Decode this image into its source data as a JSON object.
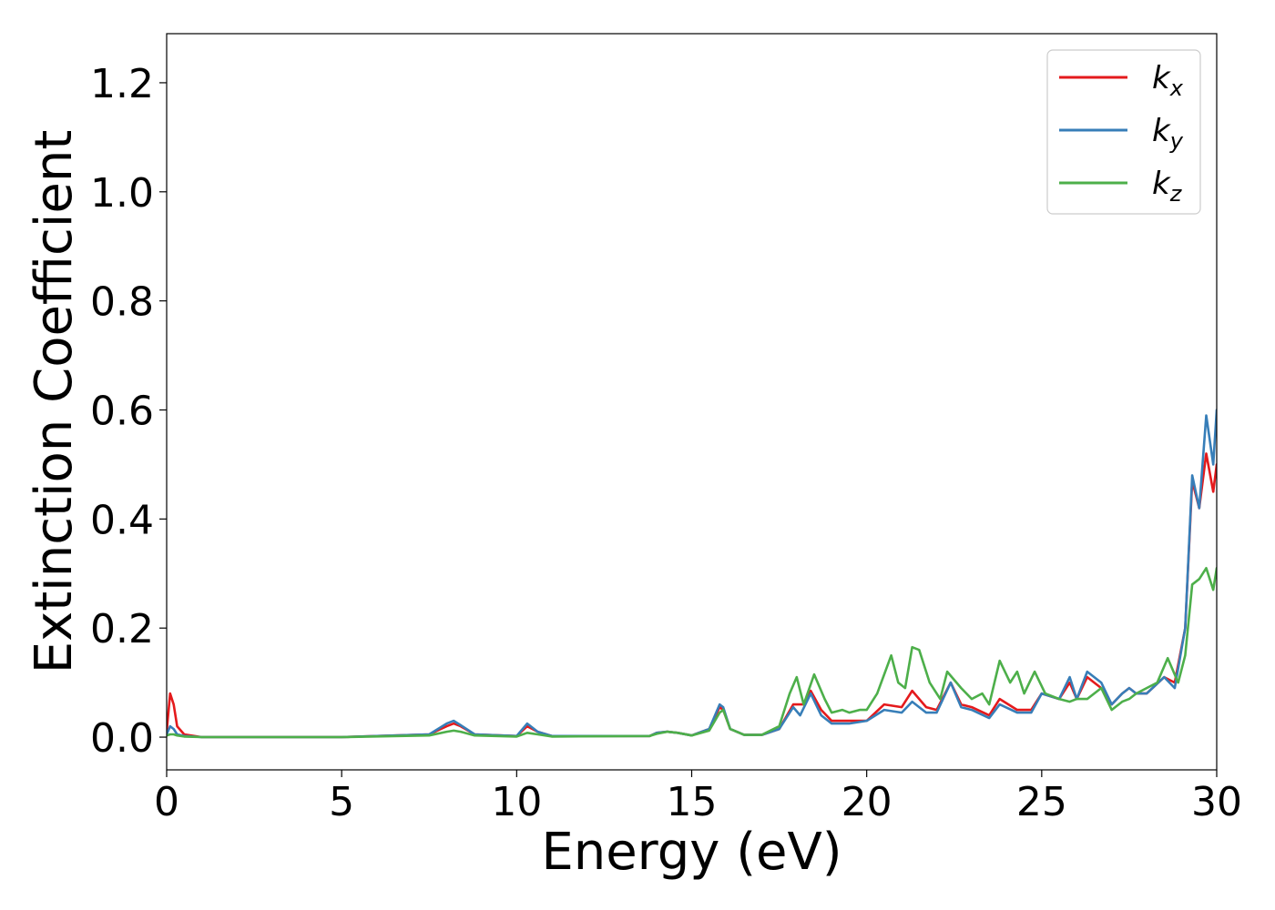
{
  "chart_data": {
    "type": "line",
    "title": "",
    "xlabel": "Energy (eV)",
    "ylabel": "Extinction Coefficient",
    "xlim": [
      0,
      30
    ],
    "ylim": [
      -0.06,
      1.29
    ],
    "xticks": [
      0,
      5,
      10,
      15,
      20,
      25,
      30
    ],
    "xtick_labels": [
      "0",
      "5",
      "10",
      "15",
      "20",
      "25",
      "30"
    ],
    "yticks": [
      0.0,
      0.2,
      0.4,
      0.6,
      0.8,
      1.0,
      1.2
    ],
    "ytick_labels": [
      "0.0",
      "0.2",
      "0.4",
      "0.6",
      "0.8",
      "1.0",
      "1.2"
    ],
    "grid": false,
    "legend_position": "top-right",
    "series": [
      {
        "name": "k",
        "subscript": "x",
        "color": "#e41a1c",
        "x": [
          0,
          0.1,
          0.2,
          0.3,
          0.5,
          1,
          5,
          7.5,
          8,
          8.2,
          8.4,
          8.8,
          10,
          10.3,
          10.6,
          11,
          13.8,
          14,
          14.3,
          14.6,
          15,
          15.5,
          15.8,
          15.9,
          16.1,
          16.5,
          17,
          17.5,
          17.9,
          18.2,
          18.4,
          18.7,
          19,
          19.5,
          20,
          20.5,
          21,
          21.3,
          21.7,
          22,
          22.4,
          22.7,
          23,
          23.5,
          23.8,
          24.3,
          24.7,
          25,
          25.5,
          25.8,
          26,
          26.3,
          26.7,
          27,
          27.3,
          27.5,
          27.7,
          28,
          28.5,
          28.8,
          29.1,
          29.3,
          29.5,
          29.7,
          29.9,
          30
        ],
        "values": [
          0.01,
          0.08,
          0.06,
          0.02,
          0.005,
          0.0,
          0.0,
          0.005,
          0.02,
          0.025,
          0.02,
          0.005,
          0.002,
          0.02,
          0.01,
          0.002,
          0.002,
          0.008,
          0.01,
          0.008,
          0.003,
          0.015,
          0.055,
          0.05,
          0.015,
          0.004,
          0.004,
          0.015,
          0.06,
          0.06,
          0.085,
          0.05,
          0.03,
          0.03,
          0.03,
          0.06,
          0.055,
          0.085,
          0.055,
          0.05,
          0.1,
          0.06,
          0.055,
          0.04,
          0.07,
          0.05,
          0.05,
          0.08,
          0.07,
          0.1,
          0.07,
          0.11,
          0.09,
          0.06,
          0.08,
          0.09,
          0.08,
          0.08,
          0.11,
          0.1,
          0.2,
          0.47,
          0.42,
          0.52,
          0.45,
          0.5
        ]
      },
      {
        "name": "k",
        "subscript": "y",
        "color": "#377eb8",
        "x": [
          0,
          0.1,
          0.2,
          0.3,
          0.5,
          1,
          5,
          7.5,
          8,
          8.2,
          8.4,
          8.8,
          10,
          10.3,
          10.6,
          11,
          13.8,
          14,
          14.3,
          14.6,
          15,
          15.5,
          15.8,
          15.9,
          16.1,
          16.5,
          17,
          17.5,
          17.9,
          18.1,
          18.4,
          18.7,
          19,
          19.5,
          20,
          20.5,
          21,
          21.3,
          21.7,
          22,
          22.4,
          22.7,
          23,
          23.5,
          23.8,
          24.3,
          24.7,
          25,
          25.5,
          25.8,
          26,
          26.3,
          26.7,
          27,
          27.3,
          27.5,
          27.7,
          28,
          28.5,
          28.8,
          29.1,
          29.3,
          29.5,
          29.7,
          29.9,
          30
        ],
        "values": [
          0.005,
          0.02,
          0.015,
          0.005,
          0.002,
          0.0,
          0.0,
          0.005,
          0.025,
          0.03,
          0.022,
          0.005,
          0.002,
          0.025,
          0.01,
          0.002,
          0.002,
          0.008,
          0.01,
          0.008,
          0.003,
          0.015,
          0.06,
          0.055,
          0.015,
          0.004,
          0.004,
          0.015,
          0.055,
          0.04,
          0.08,
          0.04,
          0.025,
          0.025,
          0.03,
          0.05,
          0.045,
          0.065,
          0.045,
          0.045,
          0.1,
          0.055,
          0.05,
          0.035,
          0.06,
          0.045,
          0.045,
          0.08,
          0.07,
          0.11,
          0.07,
          0.12,
          0.1,
          0.06,
          0.08,
          0.09,
          0.08,
          0.08,
          0.11,
          0.09,
          0.2,
          0.48,
          0.42,
          0.59,
          0.5,
          0.6
        ]
      },
      {
        "name": "k",
        "subscript": "z",
        "color": "#4daf4a",
        "x": [
          0,
          0.1,
          0.2,
          0.3,
          0.5,
          1,
          5,
          7.5,
          8,
          8.2,
          8.4,
          8.8,
          10,
          10.3,
          10.6,
          11,
          13.8,
          14,
          14.3,
          14.6,
          15,
          15.5,
          15.8,
          15.9,
          16.1,
          16.5,
          17,
          17.5,
          17.8,
          18,
          18.2,
          18.5,
          18.8,
          19,
          19.3,
          19.5,
          19.8,
          20,
          20.3,
          20.7,
          20.9,
          21.1,
          21.3,
          21.5,
          21.8,
          22.1,
          22.3,
          22.7,
          23,
          23.3,
          23.5,
          23.8,
          24.1,
          24.3,
          24.5,
          24.8,
          25.1,
          25.5,
          25.8,
          26,
          26.3,
          26.7,
          27,
          27.3,
          27.5,
          27.7,
          28,
          28.3,
          28.6,
          28.9,
          29.1,
          29.3,
          29.5,
          29.7,
          29.9,
          30
        ],
        "values": [
          0.003,
          0.005,
          0.005,
          0.003,
          0.001,
          0.0,
          0.0,
          0.003,
          0.01,
          0.012,
          0.01,
          0.003,
          0.001,
          0.008,
          0.005,
          0.001,
          0.002,
          0.006,
          0.01,
          0.008,
          0.003,
          0.012,
          0.045,
          0.05,
          0.015,
          0.004,
          0.004,
          0.02,
          0.08,
          0.11,
          0.06,
          0.115,
          0.07,
          0.045,
          0.05,
          0.045,
          0.05,
          0.05,
          0.08,
          0.15,
          0.1,
          0.09,
          0.165,
          0.16,
          0.1,
          0.07,
          0.12,
          0.09,
          0.07,
          0.08,
          0.06,
          0.14,
          0.1,
          0.12,
          0.08,
          0.12,
          0.08,
          0.07,
          0.065,
          0.07,
          0.07,
          0.09,
          0.05,
          0.065,
          0.07,
          0.08,
          0.09,
          0.1,
          0.145,
          0.1,
          0.15,
          0.28,
          0.29,
          0.31,
          0.27,
          0.31
        ]
      }
    ]
  }
}
